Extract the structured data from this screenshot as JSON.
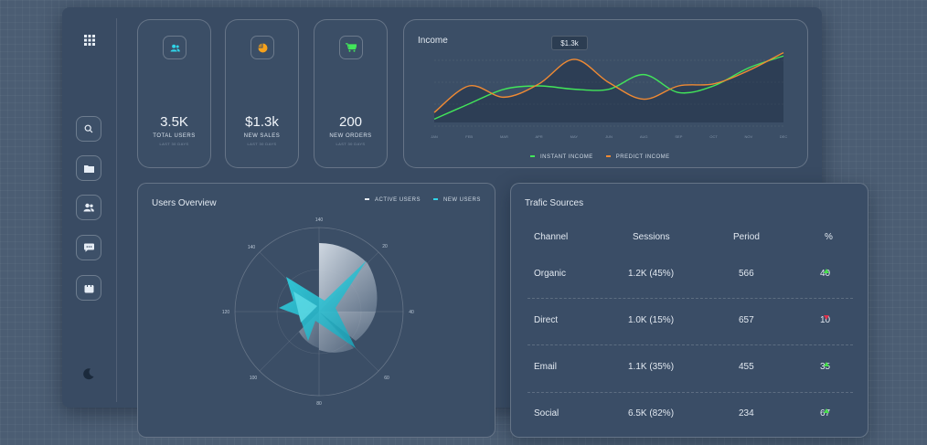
{
  "sidebar": {
    "icons": [
      "grid-icon",
      "search-icon",
      "folder-icon",
      "users-icon",
      "chat-icon",
      "bag-icon",
      "moon-icon"
    ]
  },
  "stats": [
    {
      "value": "3.5K",
      "label": "TOTAL USERS",
      "sub": "LAST 30 DAYS",
      "icon": "users-icon",
      "icon_color": "#2fd4e8"
    },
    {
      "value": "$1.3k",
      "label": "NEW SALES",
      "sub": "LAST 30 DAYS",
      "icon": "pie-chart-icon",
      "icon_color": "#f7a21b"
    },
    {
      "value": "200",
      "label": "NEW ORDERS",
      "sub": "LAST 30 DAYS",
      "icon": "cart-icon",
      "icon_color": "#42e65a"
    }
  ],
  "income": {
    "title": "Income",
    "tooltip": "$1.3k",
    "legend": [
      {
        "name": "INSTANT INCOME",
        "color": "#42e65a"
      },
      {
        "name": "PREDICT INCOME",
        "color": "#f08a33"
      }
    ],
    "months": [
      "JAN",
      "FEB",
      "MAR",
      "APR",
      "MAY",
      "JUN",
      "AUG",
      "SEP",
      "OCT",
      "NOV",
      "DEC"
    ]
  },
  "chart_data": {
    "type": "line",
    "x": [
      "JAN",
      "FEB",
      "MAR",
      "APR",
      "MAY",
      "JUN",
      "AUG",
      "SEP",
      "OCT",
      "NOV",
      "DEC"
    ],
    "series": [
      {
        "name": "INSTANT INCOME",
        "values": [
          0.05,
          0.28,
          0.5,
          0.55,
          0.5,
          0.5,
          0.72,
          0.45,
          0.55,
          0.82,
          1.0
        ]
      },
      {
        "name": "PREDICT INCOME",
        "values": [
          0.15,
          0.55,
          0.38,
          0.58,
          0.95,
          0.6,
          0.35,
          0.55,
          0.58,
          0.78,
          1.05
        ]
      }
    ],
    "ylim": [
      0,
      1.1
    ],
    "grid": true
  },
  "users_overview": {
    "title": "Users Overview",
    "legend": [
      {
        "name": "ACTIVE USERS",
        "color": "#e8edf3"
      },
      {
        "name": "NEW USERS",
        "color": "#2fd4e8"
      }
    ],
    "axis_labels": [
      "140",
      "20",
      "40",
      "60",
      "80",
      "100",
      "120",
      "140"
    ]
  },
  "traffic": {
    "title": "Trafic Sources",
    "columns": [
      "Channel",
      "Sessions",
      "Period",
      "%"
    ],
    "rows": [
      {
        "channel": "Organic",
        "sessions": "1.2K (45%)",
        "period": "566",
        "percent": "40",
        "trend": "up"
      },
      {
        "channel": "Direct",
        "sessions": "1.0K (15%)",
        "period": "657",
        "percent": "10",
        "trend": "down"
      },
      {
        "channel": "Email",
        "sessions": "1.1K (35%)",
        "period": "455",
        "percent": "35",
        "trend": "up"
      },
      {
        "channel": "Social",
        "sessions": "6.5K (82%)",
        "period": "234",
        "percent": "67",
        "trend": "up"
      }
    ]
  }
}
